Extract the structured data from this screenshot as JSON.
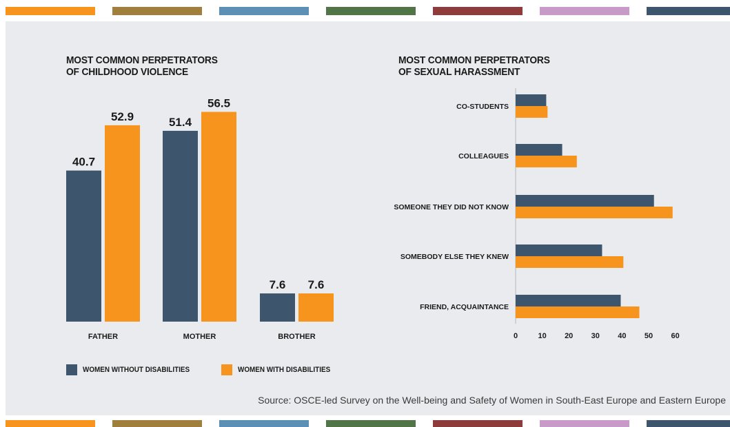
{
  "stripes": {
    "colors": [
      "#f7941d",
      "#a07e3c",
      "#5b90b4",
      "#527547",
      "#8e3c3b",
      "#c79ac8",
      "#3d566e"
    ]
  },
  "colors": {
    "women_without": "#3d566e",
    "women_with": "#f7941d",
    "panel_bg": "#e9ebee"
  },
  "source_text": "Source: OSCE-led Survey on the Well-being and Safety of Women in South-East Europe and Eastern Europe",
  "legend": {
    "items": [
      {
        "label": "WOMEN WITHOUT DISABILITIES",
        "color": "#3d566e"
      },
      {
        "label": "WOMEN WITH DISABILITIES",
        "color": "#f7941d"
      }
    ]
  },
  "chart_data": [
    {
      "type": "bar",
      "title_lines": [
        "MOST COMMON PERPETRATORS",
        "OF CHILDHOOD VIOLENCE"
      ],
      "categories": [
        "FATHER",
        "MOTHER",
        "BROTHER"
      ],
      "series": [
        {
          "name": "WOMEN WITHOUT DISABILITIES",
          "values": [
            40.7,
            51.4,
            7.6
          ],
          "labels": [
            "40.7",
            "51.4",
            "7.6"
          ]
        },
        {
          "name": "WOMEN WITH DISABILITIES",
          "values": [
            52.9,
            56.5,
            7.6
          ],
          "labels": [
            "52.9",
            "56.5",
            "7.6"
          ]
        }
      ],
      "orientation": "vertical",
      "ylim": [
        0,
        60
      ],
      "grid": false,
      "data_labels": true
    },
    {
      "type": "bar",
      "title_lines": [
        "MOST COMMON PERPETRATORS",
        "OF SEXUAL HARASSMENT"
      ],
      "orientation": "horizontal",
      "categories": [
        "CO-STUDENTS",
        "COLLEAGUES",
        "SOMEONE THEY DID NOT KNOW",
        "SOMEBODY ELSE THEY KNEW",
        "FRIEND, ACQUAINTANCE"
      ],
      "series": [
        {
          "name": "WOMEN WITHOUT DISABILITIES",
          "values": [
            11.5,
            17.5,
            52,
            32.5,
            39.5
          ]
        },
        {
          "name": "WOMEN WITH DISABILITIES",
          "values": [
            12,
            23,
            59,
            40.5,
            46.5
          ]
        }
      ],
      "xticks": [
        0,
        10,
        20,
        30,
        40,
        50,
        60
      ],
      "xlim": [
        0,
        60
      ],
      "grid": false
    }
  ]
}
